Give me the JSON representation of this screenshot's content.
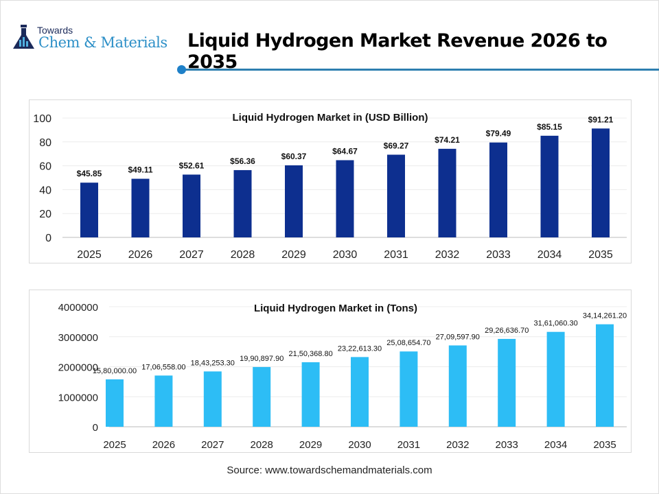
{
  "header": {
    "logo_small": "Towards",
    "logo_big": "Chem & Materials",
    "title": "Liquid Hydrogen Market Revenue 2026 to 2035"
  },
  "source": "Source: www.towardschemandmaterials.com",
  "chart_data": [
    {
      "type": "bar",
      "title": "Liquid Hydrogen Market in (USD Billion)",
      "xlabel": "",
      "ylabel": "",
      "categories": [
        "2025",
        "2026",
        "2027",
        "2028",
        "2029",
        "2030",
        "2031",
        "2032",
        "2033",
        "2034",
        "2035"
      ],
      "values": [
        45.85,
        49.11,
        52.61,
        56.36,
        60.37,
        64.67,
        69.27,
        74.21,
        79.49,
        85.15,
        91.21
      ],
      "labels": [
        "$45.85",
        "$49.11",
        "$52.61",
        "$56.36",
        "$60.37",
        "$64.67",
        "$69.27",
        "$74.21",
        "$79.49",
        "$85.15",
        "$91.21"
      ],
      "ylim": [
        0,
        100
      ],
      "yticks": [
        "0",
        "20",
        "40",
        "60",
        "80",
        "100"
      ],
      "grid": true,
      "color": "#0d2f8f"
    },
    {
      "type": "bar",
      "title": "Liquid Hydrogen Market in (Tons)",
      "xlabel": "",
      "ylabel": "",
      "categories": [
        "2025",
        "2026",
        "2027",
        "2028",
        "2029",
        "2030",
        "2031",
        "2032",
        "2033",
        "2034",
        "2035"
      ],
      "values": [
        1580000.0,
        1706558.0,
        1843253.3,
        1990897.9,
        2150368.8,
        2322613.3,
        2508654.7,
        2709597.9,
        2926636.7,
        3161060.3,
        3414261.2
      ],
      "labels": [
        "15,80,000.00",
        "17,06,558.00",
        "18,43,253.30",
        "19,90,897.90",
        "21,50,368.80",
        "23,22,613.30",
        "25,08,654.70",
        "27,09,597.90",
        "29,26,636.70",
        "31,61,060.30",
        "34,14,261.20"
      ],
      "ylim": [
        0,
        4000000
      ],
      "yticks": [
        "0",
        "1000000",
        "2000000",
        "3000000",
        "4000000"
      ],
      "grid": true,
      "color": "#2dbdf5"
    }
  ]
}
